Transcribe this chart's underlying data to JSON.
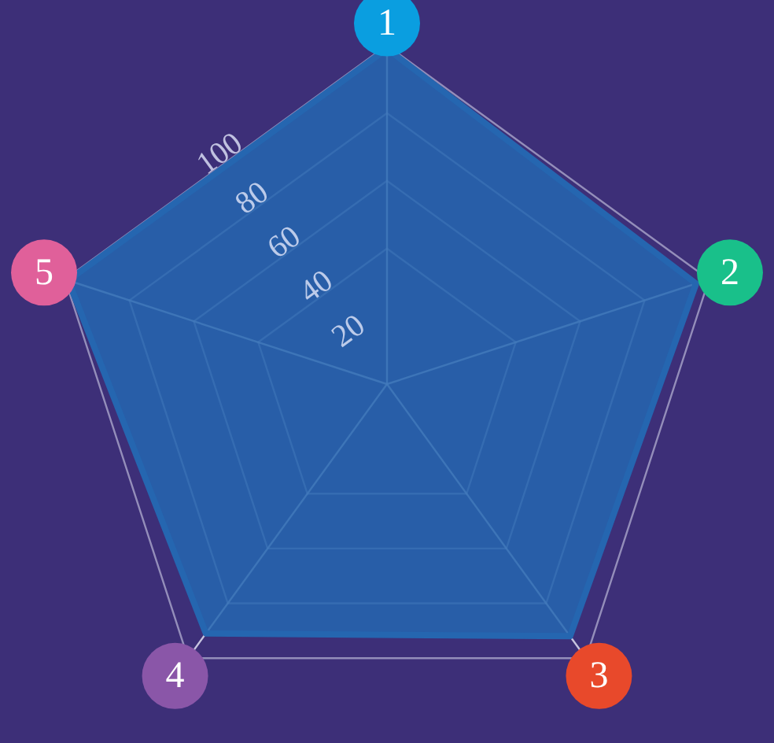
{
  "chart_data": {
    "type": "radar",
    "categories": [
      "1",
      "2",
      "3",
      "4",
      "5"
    ],
    "series": [
      {
        "color": "#2566b0",
        "values": [
          99,
          96,
          92,
          91,
          99
        ]
      }
    ],
    "ylim": [
      0,
      100
    ],
    "yticks": [
      20,
      40,
      60,
      80,
      100
    ],
    "grid": true,
    "legend": false,
    "marker": "none",
    "line_style": "solid"
  }
}
